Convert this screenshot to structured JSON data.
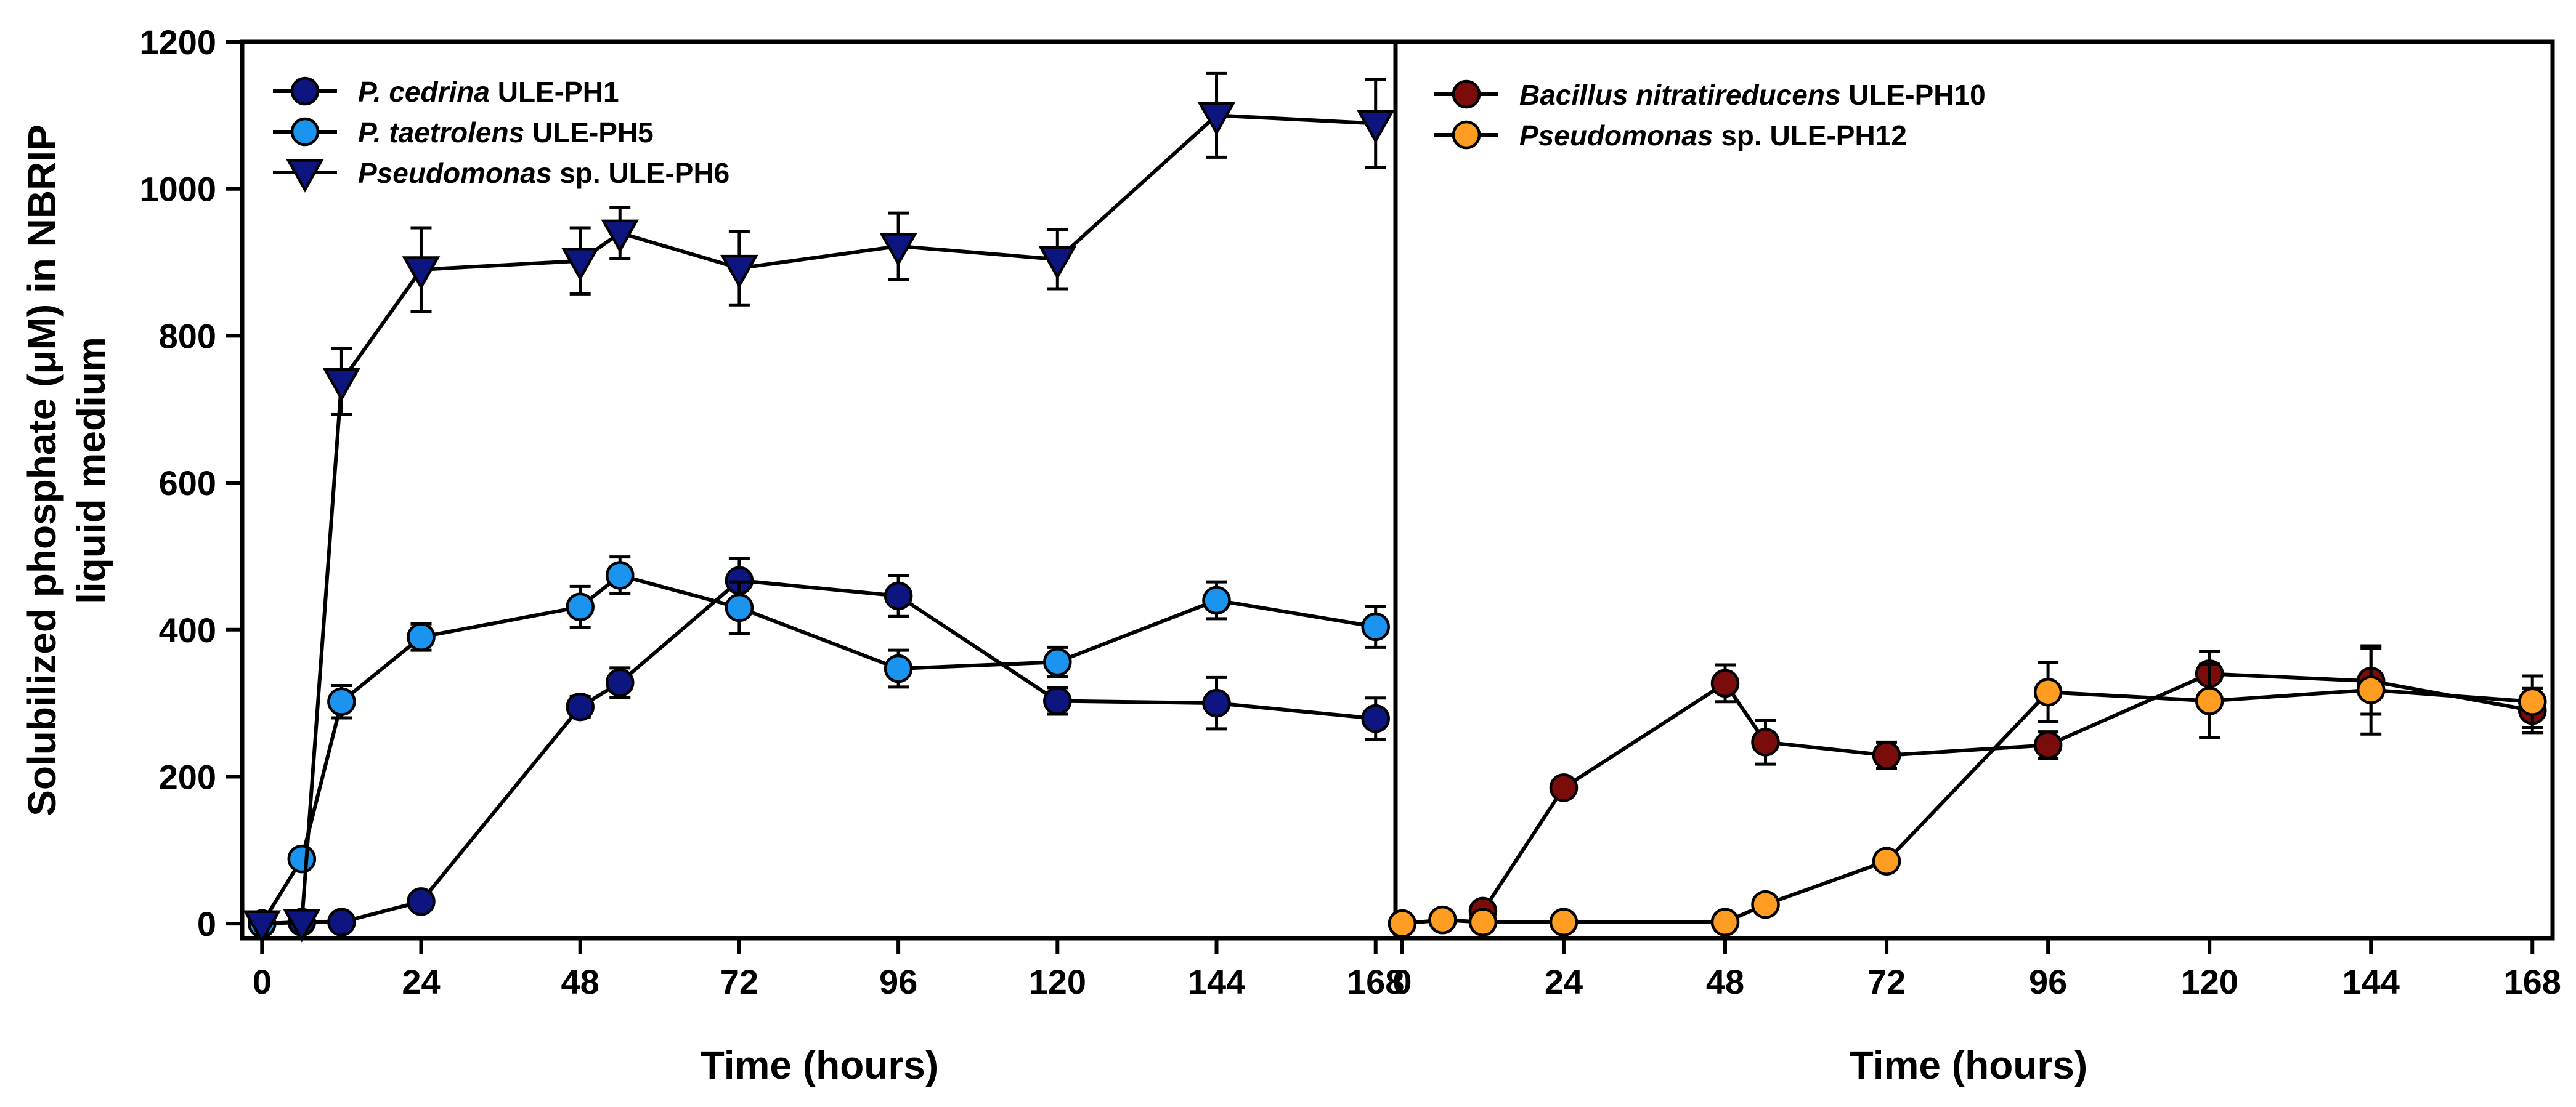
{
  "chart_data": [
    {
      "type": "line",
      "panel": "left",
      "xlabel": "Time (hours)",
      "ylabel_line1": "Solubilized phosphate (μM) in NBRIP",
      "ylabel_line2": "liquid medium",
      "xlim": [
        -3,
        171
      ],
      "ylim": [
        -20,
        1200
      ],
      "xticks": [
        0,
        24,
        48,
        72,
        96,
        120,
        144,
        168
      ],
      "yticks": [
        0,
        200,
        400,
        600,
        800,
        1000,
        1200
      ],
      "x": [
        0,
        6,
        12,
        24,
        48,
        54,
        72,
        96,
        120,
        144,
        168
      ],
      "series": [
        {
          "italic": "P. cedrina",
          "name": " ULE-PH1",
          "color": "#0d1680",
          "marker": "circle",
          "values": [
            0,
            2,
            2,
            30,
            295,
            328,
            467,
            446,
            303,
            300,
            279
          ],
          "errors": [
            0,
            0,
            0,
            0,
            14,
            20,
            30,
            28,
            18,
            35,
            28
          ]
        },
        {
          "italic": "P. taetrolens",
          "name": " ULE-PH5",
          "color": "#1a94ef",
          "marker": "circle",
          "values": [
            0,
            88,
            302,
            390,
            431,
            474,
            430,
            347,
            356,
            440,
            404
          ],
          "errors": [
            0,
            0,
            22,
            18,
            28,
            25,
            35,
            25,
            20,
            25,
            28
          ]
        },
        {
          "italic": "Pseudomonas",
          "name": " sp. ULE-PH6",
          "color": "#0d1680",
          "marker": "triangle-down",
          "values": [
            0,
            2,
            738,
            890,
            902,
            940,
            892,
            922,
            904,
            1100,
            1089
          ],
          "errors": [
            0,
            0,
            45,
            57,
            45,
            35,
            50,
            45,
            40,
            57,
            60
          ]
        }
      ]
    },
    {
      "type": "line",
      "panel": "right",
      "xlabel": "Time (hours)",
      "xlim": [
        -1,
        171
      ],
      "ylim": [
        -20,
        1200
      ],
      "xticks": [
        0,
        24,
        48,
        72,
        96,
        120,
        144,
        168
      ],
      "series": [
        {
          "italic": "Bacillus nitratireducens",
          "name": " ULE-PH10",
          "color": "#7a0c0c",
          "marker": "circle",
          "x": [
            12,
            24,
            48,
            54,
            72,
            96,
            120,
            144,
            168
          ],
          "values": [
            17,
            185,
            327,
            247,
            229,
            243,
            340,
            330,
            290
          ],
          "errors": [
            0,
            0,
            25,
            30,
            18,
            18,
            30,
            45,
            30
          ]
        },
        {
          "italic": "Pseudomonas",
          "name": " sp. ULE-PH12",
          "color": "#ff9c22",
          "marker": "circle",
          "x": [
            0,
            6,
            12,
            24,
            48,
            54,
            72,
            96,
            120,
            144,
            168
          ],
          "values": [
            0,
            5,
            2,
            2,
            2,
            26,
            85,
            315,
            303,
            318,
            302
          ],
          "errors": [
            0,
            0,
            0,
            0,
            0,
            0,
            0,
            40,
            50,
            60,
            35
          ]
        }
      ]
    }
  ]
}
